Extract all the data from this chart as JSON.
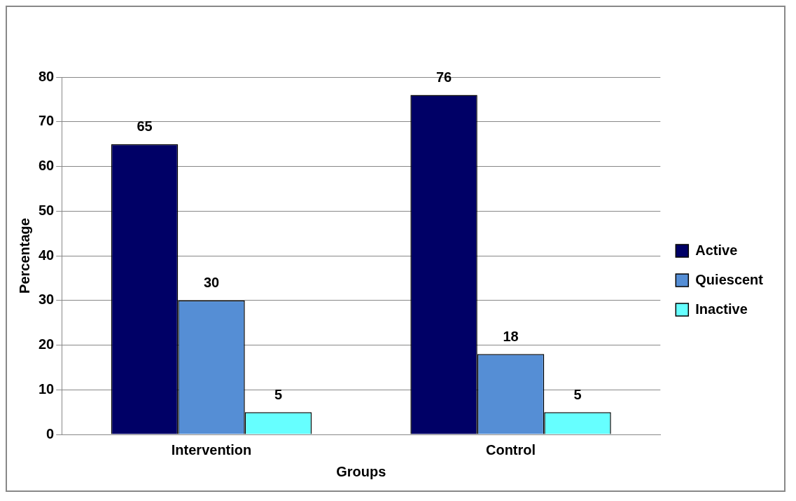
{
  "chart_data": {
    "type": "bar",
    "xlabel": "Groups",
    "ylabel": "Percentage",
    "categories": [
      "Intervention",
      "Control"
    ],
    "series": [
      {
        "name": "Active",
        "color": "#000066",
        "values": [
          65,
          76
        ]
      },
      {
        "name": "Quiescent",
        "color": "#558ed5",
        "values": [
          30,
          18
        ]
      },
      {
        "name": "Inactive",
        "color": "#66ffff",
        "values": [
          5,
          5
        ]
      }
    ],
    "ylim": [
      0,
      80
    ],
    "yticks": [
      0,
      10,
      20,
      30,
      40,
      50,
      60,
      70,
      80
    ],
    "grid": "y",
    "legend": "right",
    "data_labels": true
  }
}
